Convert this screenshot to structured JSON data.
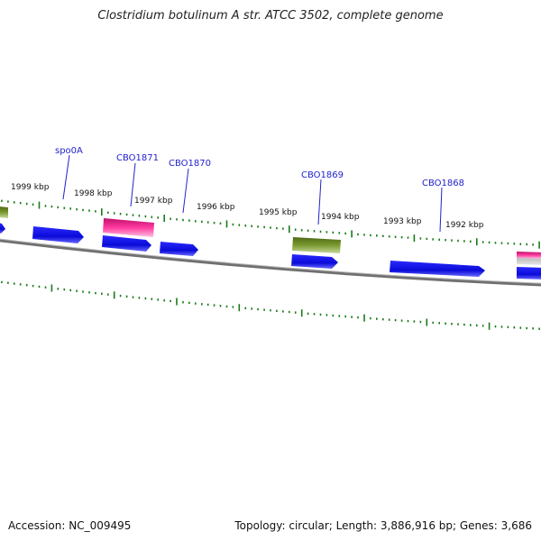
{
  "title": "Clostridium botulinum A str. ATCC 3502, complete genome",
  "footer": {
    "accession": "Accession: NC_009495",
    "summary": "Topology: circular; Length: 3,886,916 bp; Genes: 3,686"
  },
  "scale_labels": [
    "1999 kbp",
    "1998 kbp",
    "1997 kbp",
    "1996 kbp",
    "1995 kbp",
    "1994 kbp",
    "1993 kbp",
    "1992 kbp"
  ],
  "gene_labels": [
    "spo0A",
    "CBO1871",
    "CBO1870",
    "CBO1869",
    "CBO1868"
  ],
  "colors": {
    "cds": "#1010e0",
    "rna_pink": "#e8308f",
    "olive": "#6b8e23",
    "tick": "#1a7a1a",
    "backbone": "#7a7a7a",
    "label": "#2222cc"
  }
}
